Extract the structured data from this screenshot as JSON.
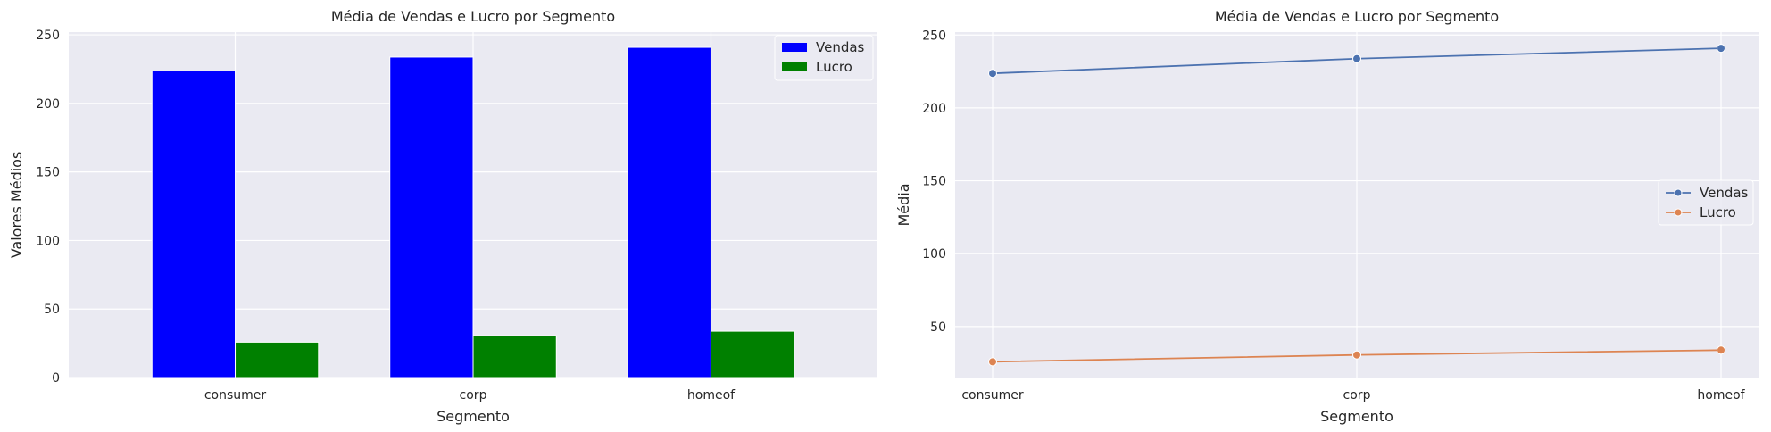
{
  "chart_data": [
    {
      "type": "bar",
      "title": "Média de Vendas e Lucro por Segmento",
      "xlabel": "Segmento",
      "ylabel": "Valores Médios",
      "categories": [
        "consumer",
        "corp",
        "homeof"
      ],
      "series": [
        {
          "name": "Vendas",
          "color": "#0000ff",
          "values": [
            223.7,
            233.8,
            240.9
          ]
        },
        {
          "name": "Lucro",
          "color": "#008000",
          "values": [
            25.8,
            30.5,
            33.8
          ]
        }
      ],
      "ylim": [
        0,
        252
      ],
      "yticks": [
        0,
        50,
        100,
        150,
        200,
        250
      ],
      "grid": true,
      "legend_position": "top-right"
    },
    {
      "type": "line",
      "title": "Média de Vendas e Lucro por Segmento",
      "xlabel": "Segmento",
      "ylabel": "Média",
      "categories": [
        "consumer",
        "corp",
        "homeof"
      ],
      "series": [
        {
          "name": "Vendas",
          "color": "#4c72b0",
          "values": [
            223.7,
            233.8,
            240.9
          ]
        },
        {
          "name": "Lucro",
          "color": "#dd8452",
          "values": [
            25.8,
            30.5,
            33.8
          ]
        }
      ],
      "ylim": [
        15,
        252
      ],
      "yticks": [
        50,
        100,
        150,
        200,
        250
      ],
      "grid": true,
      "legend_position": "center-right"
    }
  ]
}
